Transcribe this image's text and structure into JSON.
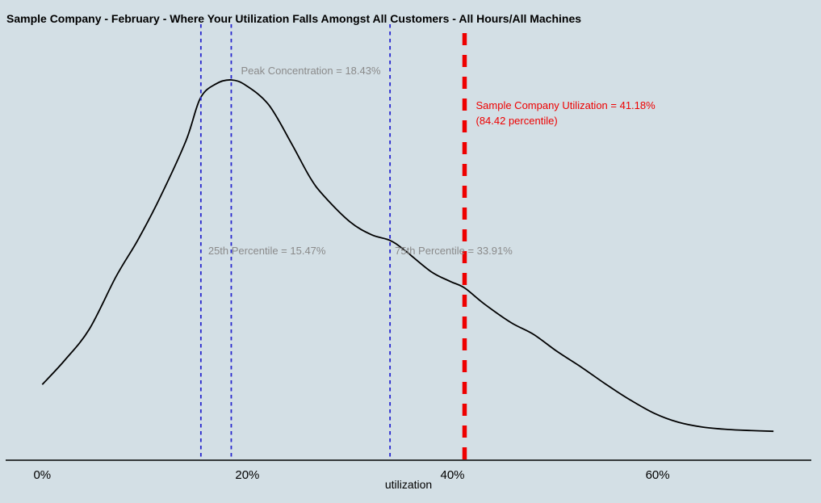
{
  "chart_data": {
    "type": "line",
    "subtype": "kernel-density",
    "title": "Sample Company - February - Where Your Utilization Falls Amongst All Customers - All Hours/All Machines",
    "xlabel": "utilization",
    "ylabel": "",
    "xlim_percent": [
      0,
      72
    ],
    "grid": false,
    "legend": null,
    "x_ticks": [
      {
        "value": 0,
        "label": "0%"
      },
      {
        "value": 20,
        "label": "20%"
      },
      {
        "value": 40,
        "label": "40%"
      },
      {
        "value": 60,
        "label": "60%"
      }
    ],
    "series": [
      {
        "name": "all-customers-utilization-density",
        "x_percent": [
          0,
          2.2,
          4.6,
          7.2,
          9.3,
          11.4,
          14.0,
          15.4,
          16.9,
          18.43,
          19.9,
          22.1,
          24.3,
          26.1,
          27.4,
          30.0,
          32.1,
          33.91,
          35.3,
          37.9,
          39.8,
          41.18,
          43.1,
          45.7,
          47.9,
          50.2,
          52.6,
          55.0,
          57.3,
          59.7,
          62.0,
          64.4,
          66.8,
          69.1,
          71.3
        ],
        "density_relative": [
          0.199,
          0.263,
          0.345,
          0.483,
          0.578,
          0.686,
          0.839,
          0.951,
          0.989,
          1.0,
          0.985,
          0.934,
          0.833,
          0.744,
          0.697,
          0.627,
          0.593,
          0.578,
          0.553,
          0.496,
          0.47,
          0.453,
          0.411,
          0.362,
          0.331,
          0.286,
          0.244,
          0.199,
          0.159,
          0.123,
          0.1,
          0.087,
          0.081,
          0.078,
          0.076
        ]
      }
    ],
    "annotations": {
      "peak": {
        "text": "Peak Concentration = 18.43%",
        "x_percent": 18.43
      },
      "p25": {
        "text": "25th Percentile = 15.47%",
        "x_percent": 15.47
      },
      "p75": {
        "text": "75th Percentile = 33.91%",
        "x_percent": 33.91
      },
      "company": {
        "line1": "Sample Company Utilization = 41.18%",
        "line2": "(84.42 percentile)",
        "x_percent": 41.18,
        "percentile": 84.42
      }
    },
    "colors": {
      "background": "#d3dfe5",
      "curve": "#000000",
      "percentile_lines": "#2626cf",
      "company_line": "#ee0000",
      "annotation_text": "#8a8a8a",
      "company_text": "#ee0000",
      "axis": "#000000"
    }
  }
}
